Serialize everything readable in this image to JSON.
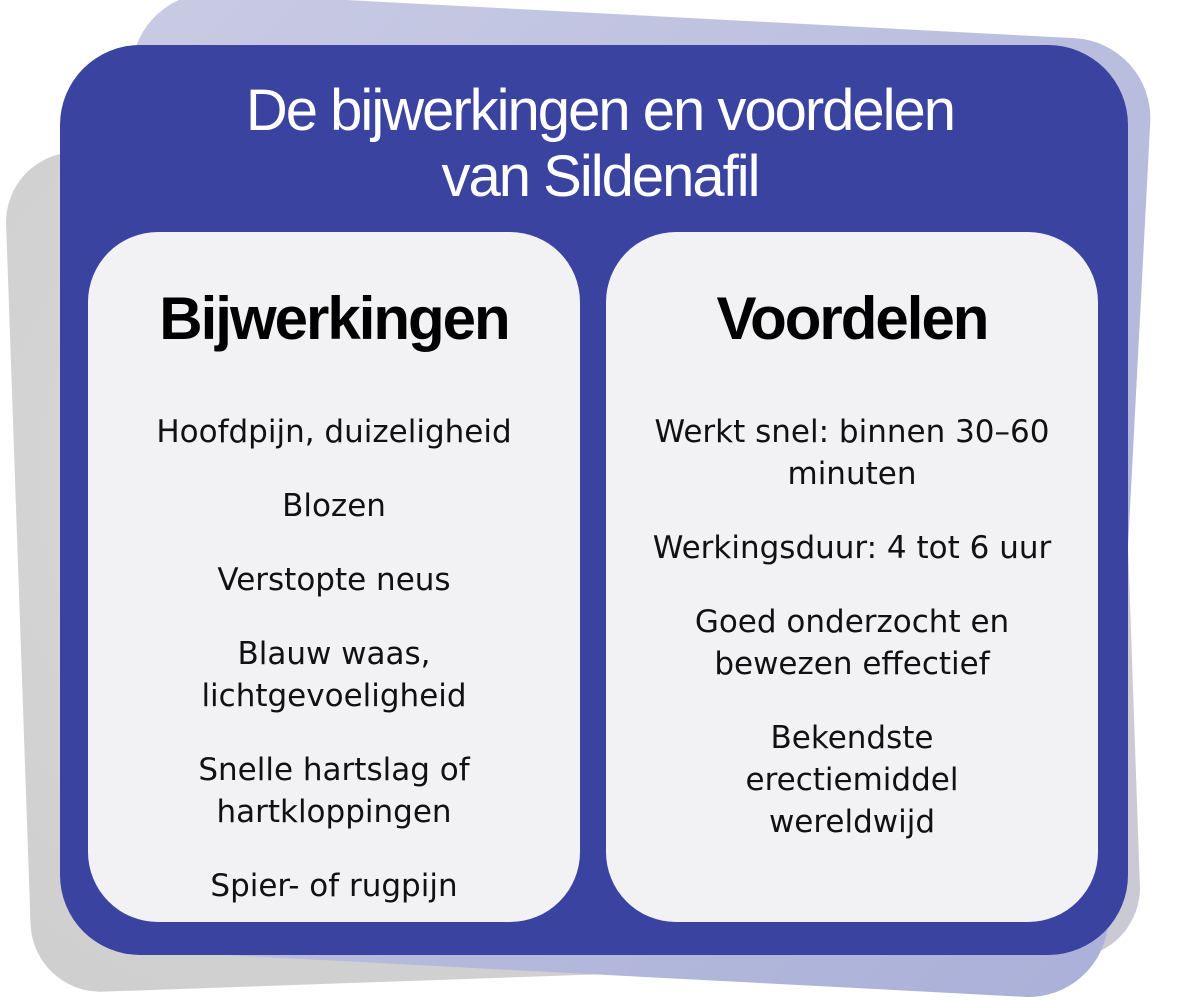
{
  "title_line1": "De bijwerkingen en voordelen",
  "title_line2": "van Sildenafil",
  "colors": {
    "card": "#3a43a0",
    "panel": "#f2f2f5"
  },
  "left": {
    "heading": "Bijwerkingen",
    "items": [
      "Hoofdpijn, duizeligheid",
      "Blozen",
      "Verstopte neus",
      "Blauw waas, lichtgevoeligheid",
      "Snelle hartslag of hartkloppingen",
      "Spier- of rugpijn"
    ]
  },
  "right": {
    "heading": "Voordelen",
    "items": [
      "Werkt snel: binnen 30–60 minuten",
      "Werkingsduur: 4 tot 6 uur",
      "Goed onderzocht en bewezen effectief",
      "Bekendste erectiemiddel wereldwijd"
    ]
  }
}
